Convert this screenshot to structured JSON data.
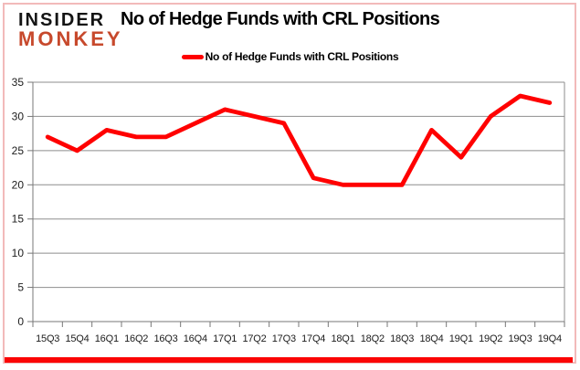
{
  "header": {
    "logo": {
      "line1": "INSIDER",
      "line2": "MONKEY"
    },
    "title": "No of Hedge Funds with CRL Positions"
  },
  "legend": {
    "label": "No of Hedge Funds with CRL Positions"
  },
  "chart_data": {
    "type": "line",
    "title": "No of Hedge Funds with CRL Positions",
    "series_name": "No of Hedge Funds with CRL Positions",
    "categories": [
      "15Q3",
      "15Q4",
      "16Q1",
      "16Q2",
      "16Q3",
      "16Q4",
      "17Q1",
      "17Q2",
      "17Q3",
      "17Q4",
      "18Q1",
      "18Q2",
      "18Q3",
      "18Q4",
      "19Q1",
      "19Q2",
      "19Q3",
      "19Q4"
    ],
    "values": [
      27,
      25,
      28,
      27,
      27,
      29,
      31,
      30,
      29,
      21,
      20,
      20,
      20,
      28,
      24,
      30,
      33,
      32
    ],
    "xlabel": "",
    "ylabel": "",
    "ylim": [
      0,
      35
    ],
    "yticks": [
      0,
      5,
      10,
      15,
      20,
      25,
      30,
      35
    ],
    "grid": true,
    "legend_position": "top",
    "line_color": "#ff0000"
  },
  "colors": {
    "line": "#ff0000",
    "grid": "#8e8e8e",
    "axis": "#777777",
    "frame_border": "#f2baba",
    "bottom_bar": "#fb0505",
    "logo_insider": "#141414",
    "logo_monkey": "#c7492c"
  }
}
